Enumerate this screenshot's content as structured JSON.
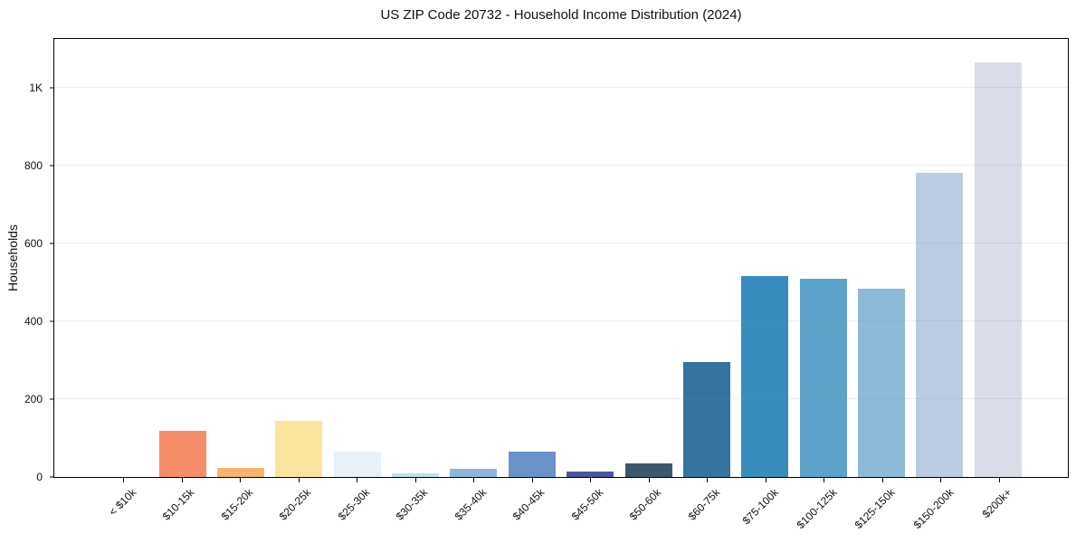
{
  "page": {
    "background": "#ffffff"
  },
  "chart_data": {
    "type": "bar",
    "title": "US ZIP Code 20732 - Household Income Distribution (2024)",
    "xlabel": "",
    "ylabel": "Households",
    "ylim": [
      0,
      1125
    ],
    "grid": "horizontal-light",
    "legend": "none",
    "yticks": [
      {
        "value": 0,
        "label": "0"
      },
      {
        "value": 200,
        "label": "200"
      },
      {
        "value": 400,
        "label": "400"
      },
      {
        "value": 600,
        "label": "600"
      },
      {
        "value": 800,
        "label": "800"
      },
      {
        "value": 1000,
        "label": "1K"
      }
    ],
    "categories": [
      "< $10k",
      "$10-15k",
      "$15-20k",
      "$20-25k",
      "$25-30k",
      "$30-35k",
      "$35-40k",
      "$40-45k",
      "$45-50k",
      "$50-60k",
      "$60-75k",
      "$75-100k",
      "$100-125k",
      "$125-150k",
      "$150-200k",
      "$200k+"
    ],
    "values": [
      0,
      119,
      23,
      143,
      64,
      9,
      21,
      66,
      15,
      34,
      295,
      517,
      508,
      484,
      781,
      1065
    ],
    "bar_colors": [
      "#e9654e",
      "#f58e68",
      "#f9b469",
      "#fbe49c",
      "#e6f2f7",
      "#bfe0ec",
      "#8fb6d8",
      "#6b92c9",
      "#4e55a4",
      "#3a5a6c",
      "#35749e",
      "#368dbe",
      "#5ba3c9",
      "#8dbad9",
      "#bbcbe2",
      "#d9dce9"
    ],
    "axis_color": "#000000",
    "grid_color": "rgba(130,140,150,0.16)",
    "text_color": "#111111"
  }
}
